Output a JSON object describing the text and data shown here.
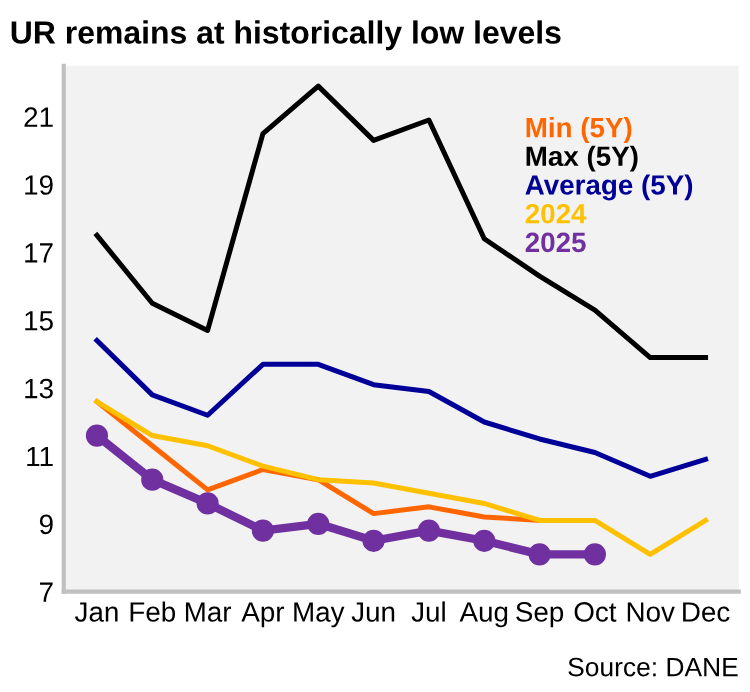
{
  "chart_data": {
    "type": "line",
    "title": "UR remains at historically low levels",
    "categories": [
      "Jan",
      "Feb",
      "Mar",
      "Apr",
      "May",
      "Jun",
      "Jul",
      "Aug",
      "Sep",
      "Oct",
      "Nov",
      "Dec"
    ],
    "series": [
      {
        "name": "Min (5Y)",
        "color": "#ff6600",
        "values": [
          12.6,
          11.3,
          10.0,
          10.6,
          10.3,
          9.3,
          9.5,
          9.2,
          9.1,
          null,
          null,
          null
        ]
      },
      {
        "name": "Max (5Y)",
        "color": "#000000",
        "values": [
          17.5,
          15.5,
          14.7,
          20.5,
          21.9,
          20.3,
          20.9,
          17.4,
          16.3,
          15.3,
          13.9,
          13.9
        ]
      },
      {
        "name": "Average (5Y)",
        "color": "#000099",
        "values": [
          14.4,
          12.8,
          12.2,
          13.7,
          13.7,
          13.1,
          12.9,
          12.0,
          11.5,
          11.1,
          10.4,
          10.9
        ]
      },
      {
        "name": "2024",
        "color": "#ffc000",
        "values": [
          12.6,
          11.6,
          11.3,
          10.7,
          10.3,
          10.2,
          9.9,
          9.6,
          9.1,
          9.1,
          8.1,
          9.1
        ]
      },
      {
        "name": "2025",
        "color": "#7030a0",
        "marker": "circle",
        "values": [
          11.6,
          10.3,
          9.6,
          8.8,
          9.0,
          8.5,
          8.8,
          8.5,
          8.1,
          8.1,
          null,
          null
        ]
      }
    ],
    "ylim": [
      7,
      22.5
    ],
    "yticks": [
      7,
      9,
      11,
      13,
      15,
      17,
      19,
      21
    ],
    "grid": false,
    "legend": "top right",
    "annotations": [
      "Source: DANE"
    ]
  }
}
